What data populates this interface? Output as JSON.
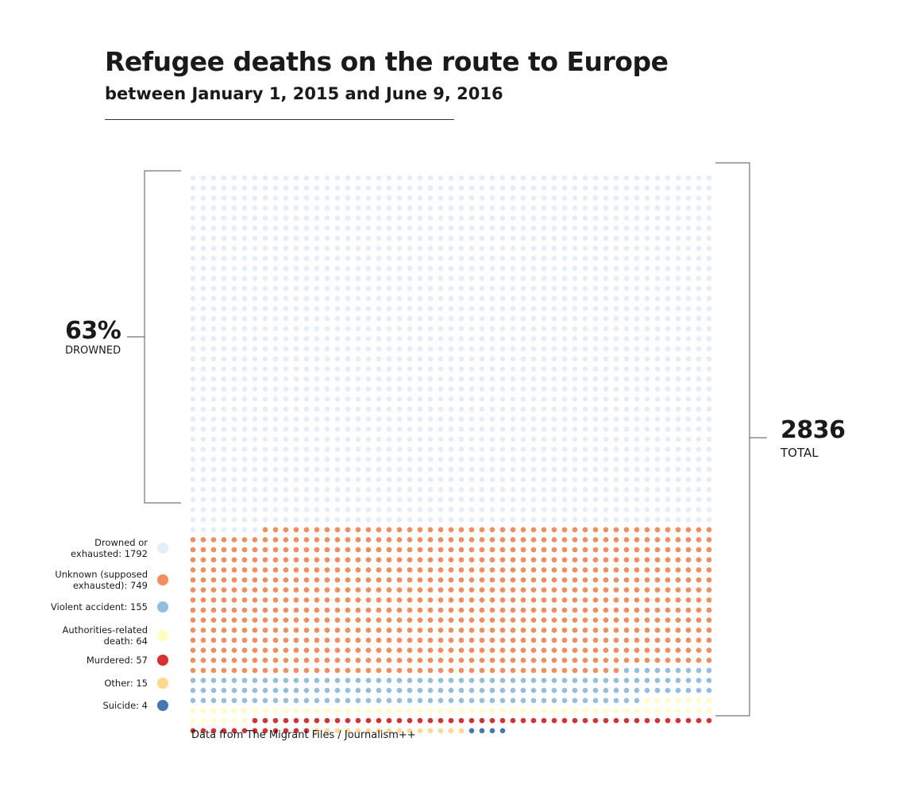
{
  "header": {
    "title": "Refugee deaths on the route to Europe",
    "subtitle": "between January 1, 2015 and June 9, 2016"
  },
  "annotations": {
    "drowned_pct": "63%",
    "drowned_label": "DROWNED",
    "total_value": "2836",
    "total_label": "TOTAL"
  },
  "legend": {
    "items": [
      {
        "label_line1": "Drowned or",
        "label_line2": "exhausted: 1792"
      },
      {
        "label_line1": "Unknown (supposed",
        "label_line2": "exhausted): 749"
      },
      {
        "label_line1": "Violent accident: 155",
        "label_line2": ""
      },
      {
        "label_line1": "Authorities-related",
        "label_line2": "death: 64"
      },
      {
        "label_line1": "Murdered: 57",
        "label_line2": ""
      },
      {
        "label_line1": "Other: 15",
        "label_line2": ""
      },
      {
        "label_line1": "Suicide: 4",
        "label_line2": ""
      }
    ]
  },
  "source": "Data from The Migrant Files / Journalism++",
  "chart_data": {
    "type": "waffle",
    "title": "Refugee deaths on the route to Europe",
    "subtitle": "between January 1, 2015 and June 9, 2016",
    "total": 2836,
    "unit": "one dot = one death",
    "columns": 51,
    "fill_order": "top-left to bottom-right, row by row",
    "categories": [
      {
        "name": "Drowned or exhausted",
        "value": 1792,
        "color": "#e2eff8"
      },
      {
        "name": "Unknown (supposed exhausted)",
        "value": 749,
        "color": "#f58c5b"
      },
      {
        "name": "Violent accident",
        "value": 155,
        "color": "#92bfdf"
      },
      {
        "name": "Authorities-related death",
        "value": 64,
        "color": "#fffdc2"
      },
      {
        "name": "Murdered",
        "value": 57,
        "color": "#d83131"
      },
      {
        "name": "Other",
        "value": 15,
        "color": "#fed98c"
      },
      {
        "name": "Suicide",
        "value": 4,
        "color": "#4477b8"
      }
    ],
    "annotations": [
      {
        "text": "63% DROWNED",
        "refers_to": "Drowned or exhausted"
      },
      {
        "text": "2836 TOTAL",
        "refers_to": "all"
      }
    ]
  }
}
